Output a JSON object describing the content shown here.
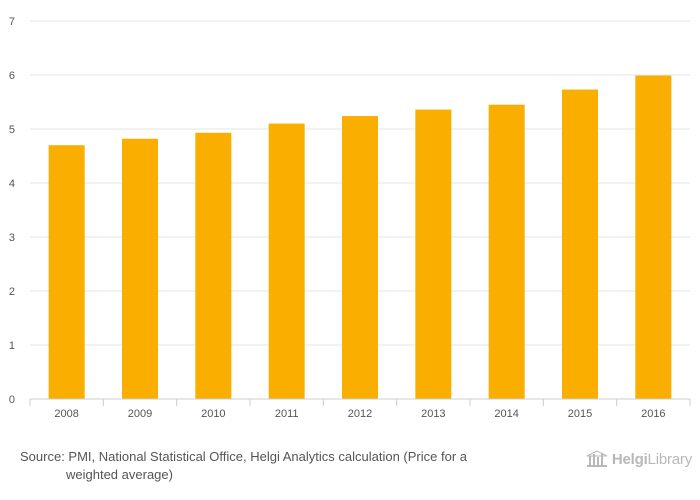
{
  "chart_data": {
    "type": "bar",
    "categories": [
      "2008",
      "2009",
      "2010",
      "2011",
      "2012",
      "2013",
      "2014",
      "2015",
      "2016"
    ],
    "values": [
      4.7,
      4.82,
      4.93,
      5.1,
      5.24,
      5.36,
      5.45,
      5.73,
      5.99
    ],
    "ylim": [
      0,
      7
    ],
    "yticks": [
      0,
      1,
      2,
      3,
      4,
      5,
      6,
      7
    ],
    "grid": true,
    "bar_color": "#f9ae00"
  },
  "footer": {
    "source_line1": "Source: PMI, National Statistical Office, Helgi Analytics calculation (Price for a",
    "source_line2": "weighted average)"
  },
  "logo": {
    "brand_prefix": "Helgi",
    "brand_suffix": "Library",
    "icon": "library-icon",
    "color": "#b8b8b8"
  }
}
